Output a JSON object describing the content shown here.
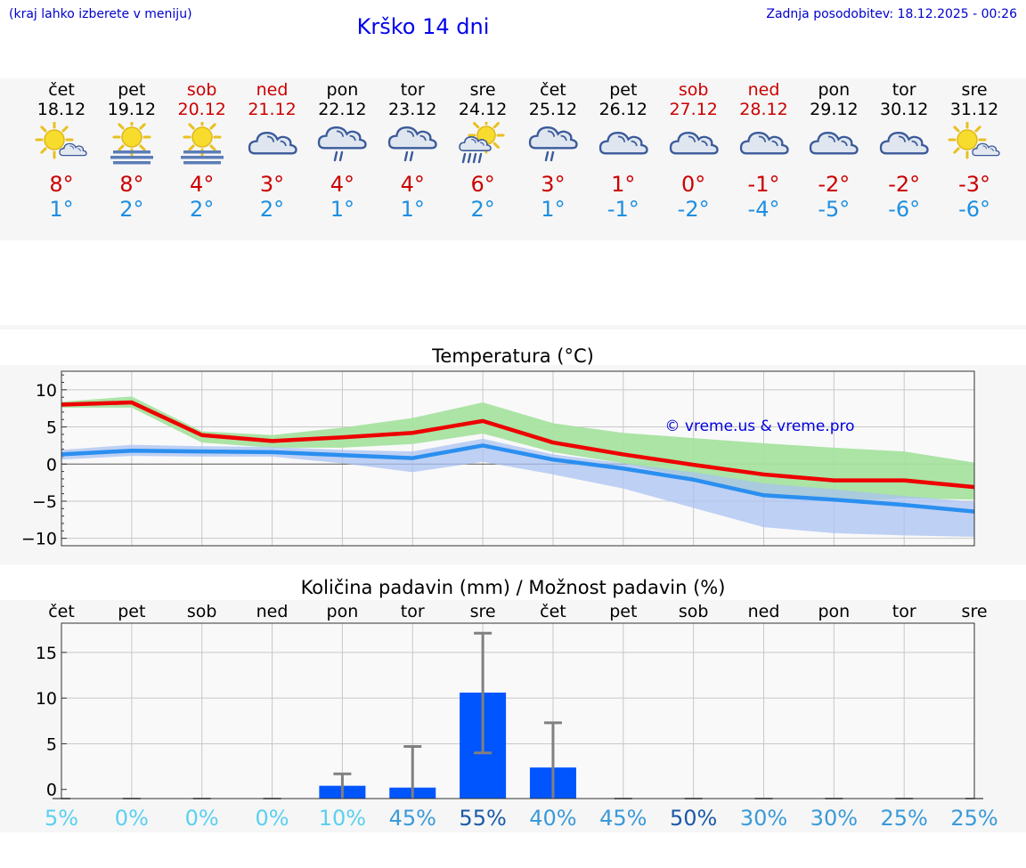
{
  "header": {
    "hint": "(kraj lahko izberete v meniju)",
    "title": "Krško 14 dni",
    "updated": "Zadnja posodobitev: 18.12.2025 - 00:26"
  },
  "days": [
    {
      "name": "čet",
      "date": "18.12",
      "icon": "sun-cloud-icon",
      "tmax": "8°",
      "tmin": "1°",
      "weekend": false
    },
    {
      "name": "pet",
      "date": "19.12",
      "icon": "sun-fog-icon",
      "tmax": "8°",
      "tmin": "2°",
      "weekend": false
    },
    {
      "name": "sob",
      "date": "20.12",
      "icon": "sun-fog-icon",
      "tmax": "4°",
      "tmin": "2°",
      "weekend": true
    },
    {
      "name": "ned",
      "date": "21.12",
      "icon": "cloudy-icon",
      "tmax": "3°",
      "tmin": "2°",
      "weekend": true
    },
    {
      "name": "pon",
      "date": "22.12",
      "icon": "cloud-rain-icon",
      "tmax": "4°",
      "tmin": "1°",
      "weekend": false
    },
    {
      "name": "tor",
      "date": "23.12",
      "icon": "cloud-rain-icon",
      "tmax": "4°",
      "tmin": "1°",
      "weekend": false
    },
    {
      "name": "sre",
      "date": "24.12",
      "icon": "sun-rain-icon",
      "tmax": "6°",
      "tmin": "2°",
      "weekend": false
    },
    {
      "name": "čet",
      "date": "25.12",
      "icon": "cloud-rain-icon",
      "tmax": "3°",
      "tmin": "1°",
      "weekend": false
    },
    {
      "name": "pet",
      "date": "26.12",
      "icon": "cloudy-icon",
      "tmax": "1°",
      "tmin": "-1°",
      "weekend": false
    },
    {
      "name": "sob",
      "date": "27.12",
      "icon": "cloudy-icon",
      "tmax": "0°",
      "tmin": "-2°",
      "weekend": true
    },
    {
      "name": "ned",
      "date": "28.12",
      "icon": "cloudy-icon",
      "tmax": "-1°",
      "tmin": "-4°",
      "weekend": true
    },
    {
      "name": "pon",
      "date": "29.12",
      "icon": "cloudy-icon",
      "tmax": "-2°",
      "tmin": "-5°",
      "weekend": false
    },
    {
      "name": "tor",
      "date": "30.12",
      "icon": "cloudy-icon",
      "tmax": "-2°",
      "tmin": "-6°",
      "weekend": false
    },
    {
      "name": "sre",
      "date": "31.12",
      "icon": "sun-cloud-icon",
      "tmax": "-3°",
      "tmin": "-6°",
      "weekend": false
    }
  ],
  "colors": {
    "max_line": "#ee0000",
    "min_line": "#2a8ff0",
    "max_band": "#a6e3a0",
    "min_band": "#a9c1f2",
    "bar": "#0055ff",
    "weekend_text": "#cc0000",
    "max_text": "#cc0000",
    "min_text": "#1e8fe0"
  },
  "chart_data": [
    {
      "type": "line",
      "title": "Temperatura (°C)",
      "watermark": "© vreme.us & vreme.pro",
      "ylim": [
        -11,
        12.5
      ],
      "yticks": [
        10,
        5,
        0,
        -5,
        -10
      ],
      "ytick_labels": [
        "10",
        "5",
        "0",
        "−5",
        "−10"
      ],
      "x": [
        0,
        1,
        2,
        3,
        4,
        5,
        6,
        7,
        8,
        9,
        10,
        11,
        12,
        13
      ],
      "series": [
        {
          "name": "max",
          "values": [
            8,
            8.3,
            3.9,
            3.1,
            3.6,
            4.2,
            5.8,
            2.9,
            1.3,
            -0.1,
            -1.4,
            -2.2,
            -2.2,
            -3.1
          ]
        },
        {
          "name": "min",
          "values": [
            1.3,
            1.8,
            1.7,
            1.6,
            1.2,
            0.8,
            2.5,
            0.6,
            -0.6,
            -2.1,
            -4.2,
            -4.8,
            -5.5,
            -6.4
          ]
        },
        {
          "name": "max_range_high",
          "values": [
            8.4,
            9.1,
            4.4,
            3.9,
            4.9,
            6.2,
            8.3,
            5.5,
            4.2,
            3.5,
            2.8,
            2.2,
            1.7,
            0.2
          ]
        },
        {
          "name": "max_range_low",
          "values": [
            7.6,
            7.6,
            2.9,
            2.2,
            2.2,
            2.7,
            4.1,
            1.6,
            0.1,
            -1.9,
            -4.1,
            -5.1,
            -4.6,
            -4.8
          ]
        },
        {
          "name": "min_range_high",
          "values": [
            1.9,
            2.6,
            2.4,
            2.3,
            1.9,
            1.7,
            3.4,
            1.3,
            0.1,
            -1.1,
            -2.6,
            -3.4,
            -4.3,
            -5.1
          ]
        },
        {
          "name": "min_range_low",
          "values": [
            0.6,
            1.1,
            1.0,
            1.0,
            0.1,
            -1.1,
            0.3,
            -1.4,
            -3.3,
            -5.9,
            -8.5,
            -9.3,
            -9.6,
            -9.8
          ]
        }
      ]
    },
    {
      "type": "bar",
      "title": "Količina padavin (mm) / Možnost padavin (%)",
      "categories": [
        "čet",
        "pet",
        "sob",
        "ned",
        "pon",
        "tor",
        "sre",
        "čet",
        "pet",
        "sob",
        "ned",
        "pon",
        "tor",
        "sre"
      ],
      "values": [
        0,
        0,
        0,
        0,
        0.4,
        0.2,
        10.6,
        2.4,
        0,
        0,
        0,
        0,
        0,
        0
      ],
      "error_high": [
        0,
        0,
        0,
        0,
        1.7,
        4.7,
        17.1,
        7.3,
        0,
        0,
        0,
        0,
        0,
        0
      ],
      "error_low": [
        0,
        0,
        0,
        0,
        0,
        0,
        4.0,
        0,
        0,
        0,
        0,
        0,
        0,
        0
      ],
      "ylim": [
        -1,
        18.2
      ],
      "yticks": [
        15,
        10,
        5,
        0
      ],
      "ytick_labels": [
        "15",
        "10",
        "5",
        "0"
      ],
      "probability": [
        "5%",
        "0%",
        "0%",
        "0%",
        "10%",
        "45%",
        "55%",
        "40%",
        "45%",
        "50%",
        "30%",
        "30%",
        "25%",
        "25%"
      ],
      "probability_colors": [
        "#5ad0f0",
        "#5ad0f0",
        "#5ad0f0",
        "#5ad0f0",
        "#5ad0f0",
        "#3a9ad8",
        "#1a5aa8",
        "#3a9ad8",
        "#3a9ad8",
        "#1a5aa8",
        "#3a9ad8",
        "#3a9ad8",
        "#3a9ad8",
        "#3a9ad8"
      ]
    }
  ]
}
